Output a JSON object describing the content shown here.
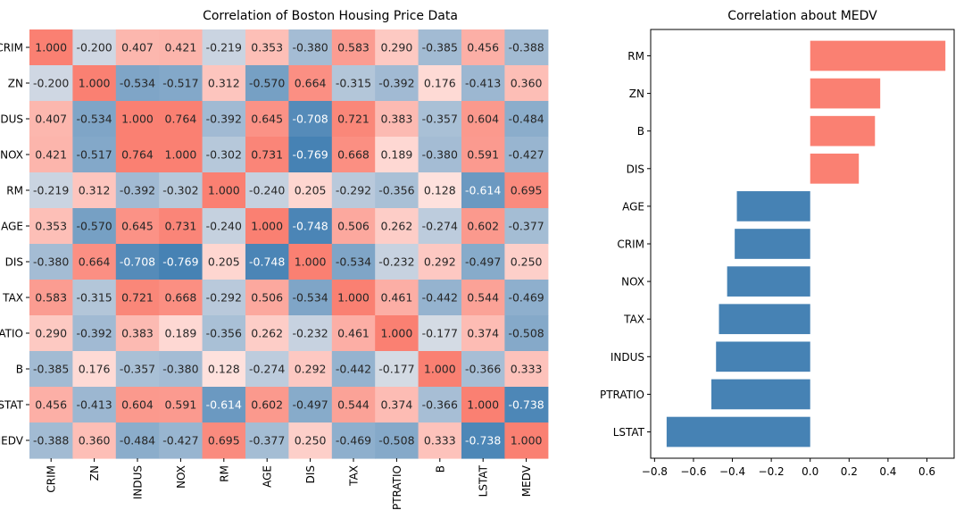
{
  "chart_data": [
    {
      "type": "heatmap",
      "title": "Correlation of Boston Housing Price Data",
      "xlabels": [
        "CRIM",
        "ZN",
        "INDUS",
        "NOX",
        "RM",
        "AGE",
        "DIS",
        "TAX",
        "PTRATIO",
        "B",
        "LSTAT",
        "MEDV"
      ],
      "ylabels": [
        "CRIM",
        "ZN",
        "INDUS",
        "NOX",
        "RM",
        "AGE",
        "DIS",
        "TAX",
        "PTRATIO",
        "B",
        "LSTAT",
        "MEDV"
      ],
      "value_format": "3 decimals",
      "colormap": {
        "negative": "#4682b4",
        "mid": "#fff5f3",
        "positive": "#fa8072"
      },
      "matrix": [
        [
          1.0,
          -0.2,
          0.407,
          0.421,
          -0.219,
          0.353,
          -0.38,
          0.583,
          0.29,
          -0.385,
          0.456,
          -0.388
        ],
        [
          -0.2,
          1.0,
          -0.534,
          -0.517,
          0.312,
          -0.57,
          0.664,
          -0.315,
          -0.392,
          0.176,
          -0.413,
          0.36
        ],
        [
          0.407,
          -0.534,
          1.0,
          0.764,
          -0.392,
          0.645,
          -0.708,
          0.721,
          0.383,
          -0.357,
          0.604,
          -0.484
        ],
        [
          0.421,
          -0.517,
          0.764,
          1.0,
          -0.302,
          0.731,
          -0.769,
          0.668,
          0.189,
          -0.38,
          0.591,
          -0.427
        ],
        [
          -0.219,
          0.312,
          -0.392,
          -0.302,
          1.0,
          -0.24,
          0.205,
          -0.292,
          -0.356,
          0.128,
          -0.614,
          0.695
        ],
        [
          0.353,
          -0.57,
          0.645,
          0.731,
          -0.24,
          1.0,
          -0.748,
          0.506,
          0.262,
          -0.274,
          0.602,
          -0.377
        ],
        [
          -0.38,
          0.664,
          -0.708,
          -0.769,
          0.205,
          -0.748,
          1.0,
          -0.534,
          -0.232,
          0.292,
          -0.497,
          0.25
        ],
        [
          0.583,
          -0.315,
          0.721,
          0.668,
          -0.292,
          0.506,
          -0.534,
          1.0,
          0.461,
          -0.442,
          0.544,
          -0.469
        ],
        [
          0.29,
          -0.392,
          0.383,
          0.189,
          -0.356,
          0.262,
          -0.232,
          0.461,
          1.0,
          -0.177,
          0.374,
          -0.508
        ],
        [
          -0.385,
          0.176,
          -0.357,
          -0.38,
          0.128,
          -0.274,
          0.292,
          -0.442,
          -0.177,
          1.0,
          -0.366,
          0.333
        ],
        [
          0.456,
          -0.413,
          0.604,
          0.591,
          -0.614,
          0.602,
          -0.497,
          0.544,
          0.374,
          -0.366,
          1.0,
          -0.738
        ],
        [
          -0.388,
          0.36,
          -0.484,
          -0.427,
          0.695,
          -0.377,
          0.25,
          -0.469,
          -0.508,
          0.333,
          -0.738,
          1.0
        ]
      ]
    },
    {
      "type": "bar",
      "orientation": "horizontal",
      "title": "Correlation about MEDV",
      "categories": [
        "RM",
        "ZN",
        "B",
        "DIS",
        "AGE",
        "CRIM",
        "NOX",
        "TAX",
        "INDUS",
        "PTRATIO",
        "LSTAT"
      ],
      "values": [
        0.695,
        0.36,
        0.333,
        0.25,
        -0.377,
        -0.388,
        -0.427,
        -0.469,
        -0.484,
        -0.508,
        -0.738
      ],
      "colors": {
        "positive": "#fa8072",
        "negative": "#4682b4"
      },
      "xlim": [
        -0.82,
        0.74
      ],
      "xticks": [
        -0.8,
        -0.6,
        -0.4,
        -0.2,
        0.0,
        0.2,
        0.4,
        0.6
      ],
      "xtick_labels": [
        "−0.8",
        "−0.6",
        "−0.4",
        "−0.2",
        "0.0",
        "0.2",
        "0.4",
        "0.6"
      ],
      "grid": false
    }
  ]
}
